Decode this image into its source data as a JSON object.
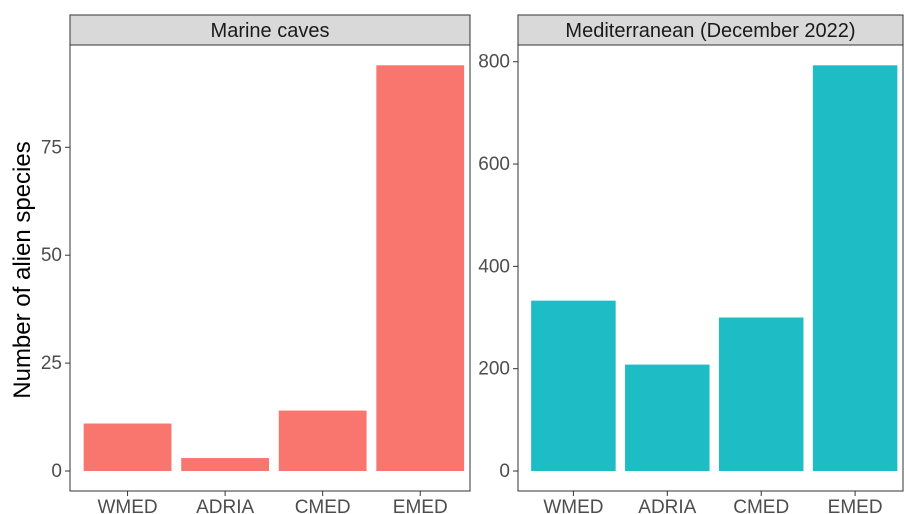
{
  "chart_data": [
    {
      "type": "bar",
      "title": "Marine caves",
      "xlabel": "",
      "ylabel": "Number of alien species",
      "categories": [
        "WMED",
        "ADRIA",
        "CMED",
        "EMED"
      ],
      "values": [
        11,
        3,
        14,
        94
      ],
      "yticks": [
        0,
        25,
        50,
        75
      ],
      "ylim": [
        0,
        98.7
      ],
      "color": "#F8766D",
      "grid": false
    },
    {
      "type": "bar",
      "title": "Mediterranean (December 2022)",
      "xlabel": "",
      "ylabel": "",
      "categories": [
        "WMED",
        "ADRIA",
        "CMED",
        "EMED"
      ],
      "values": [
        333,
        208,
        300,
        793
      ],
      "yticks": [
        0,
        200,
        400,
        600,
        800
      ],
      "ylim": [
        0,
        832.7
      ],
      "color": "#1EBCC4",
      "grid": false
    }
  ]
}
